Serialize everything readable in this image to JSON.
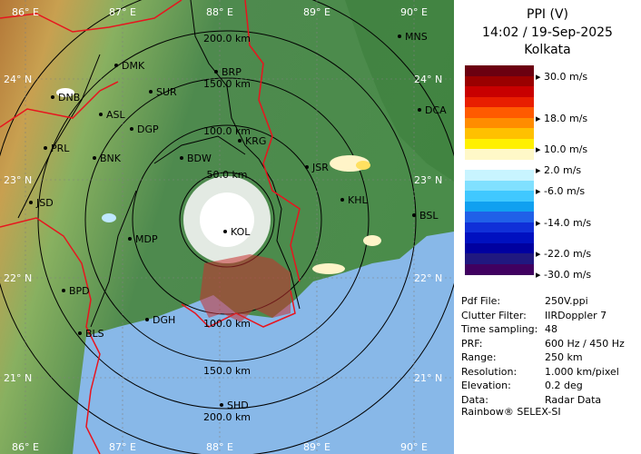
{
  "header": {
    "product": "PPI (V)",
    "timestamp": "14:02 / 19-Sep-2025",
    "station": "Kolkata"
  },
  "legend": {
    "unit": "m/s",
    "colors": [
      "#6b0010",
      "#9a0000",
      "#c80000",
      "#e81e00",
      "#ff5a00",
      "#ff8c00",
      "#ffc000",
      "#fff000",
      "#fff8c8",
      "#ffffff",
      "#c8f4ff",
      "#80e0ff",
      "#40c8ff",
      "#10a0f0",
      "#2060e8",
      "#1030d8",
      "#0010c0",
      "#0000a0",
      "#201880",
      "#400060"
    ],
    "ticks": [
      "30.0 m/s",
      "18.0 m/s",
      "10.0 m/s",
      "2.0 m/s",
      "-6.0 m/s",
      "-14.0 m/s",
      "-22.0 m/s",
      "-30.0 m/s"
    ]
  },
  "info": [
    {
      "key": "Pdf File:",
      "value": "250V.ppi"
    },
    {
      "key": "Clutter Filter:",
      "value": "IIRDoppler 7"
    },
    {
      "key": "Time sampling:",
      "value": "48"
    },
    {
      "key": "PRF:",
      "value": "600 Hz / 450 Hz"
    },
    {
      "key": "Range:",
      "value": "250 km"
    },
    {
      "key": "Resolution:",
      "value": "1.000 km/pixel"
    },
    {
      "key": "Elevation:",
      "value": "0.2 deg"
    },
    {
      "key": "Data:",
      "value": "Radar Data"
    }
  ],
  "footer": "Rainbow® SELEX-SI",
  "map": {
    "lon_labels": [
      "86° E",
      "87° E",
      "88° E",
      "89° E",
      "90° E"
    ],
    "lat_labels": [
      "24° N",
      "23° N",
      "22° N",
      "21° N"
    ],
    "range_rings": [
      "50.0 km",
      "100.0 km",
      "150.0 km",
      "200.0 km"
    ],
    "cities": [
      "MNS",
      "DMK",
      "BRP",
      "DNB",
      "SUR",
      "DCA",
      "ASL",
      "DGP",
      "KRG",
      "PRL",
      "BNK",
      "BDW",
      "JSR",
      "JSD",
      "KHL",
      "MDP",
      "BSL",
      "BPD",
      "DGH",
      "BLS",
      "SHD",
      "KOL"
    ]
  }
}
